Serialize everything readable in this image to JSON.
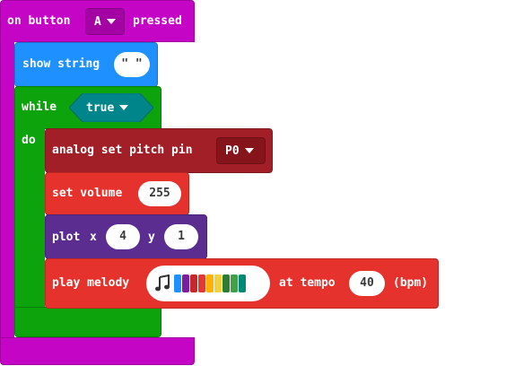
{
  "event": {
    "prefix": "on button",
    "button_value": "A",
    "suffix": "pressed"
  },
  "show_string": {
    "label": "show string",
    "value": "\" \""
  },
  "while_block": {
    "label": "while",
    "condition": "true",
    "do_label": "do"
  },
  "analog_pitch": {
    "label": "analog set pitch pin",
    "pin": "P0"
  },
  "set_volume": {
    "label": "set volume",
    "value": "255"
  },
  "plot": {
    "label": "plot",
    "x_label": "x",
    "x_value": "4",
    "y_label": "y",
    "y_value": "1"
  },
  "play_melody": {
    "label": "play melody",
    "melody_icon": "music-note-icon",
    "melody_colors": [
      "#1e90ff",
      "#7b1fa2",
      "#c62828",
      "#e53935",
      "#ffb300",
      "#f4d03f",
      "#2e7d32",
      "#43a047",
      "#00897b"
    ],
    "tempo_label": "at tempo",
    "tempo_value": "40",
    "unit": "(bpm)"
  },
  "colors": {
    "event": "#c505c5",
    "show_string": "#1e90ff",
    "loop": "#0ca30c",
    "loop_dark": "#087f08",
    "condition": "#00858a",
    "pins": "#a21f27",
    "music": "#e5322d",
    "led": "#5c2d91"
  }
}
